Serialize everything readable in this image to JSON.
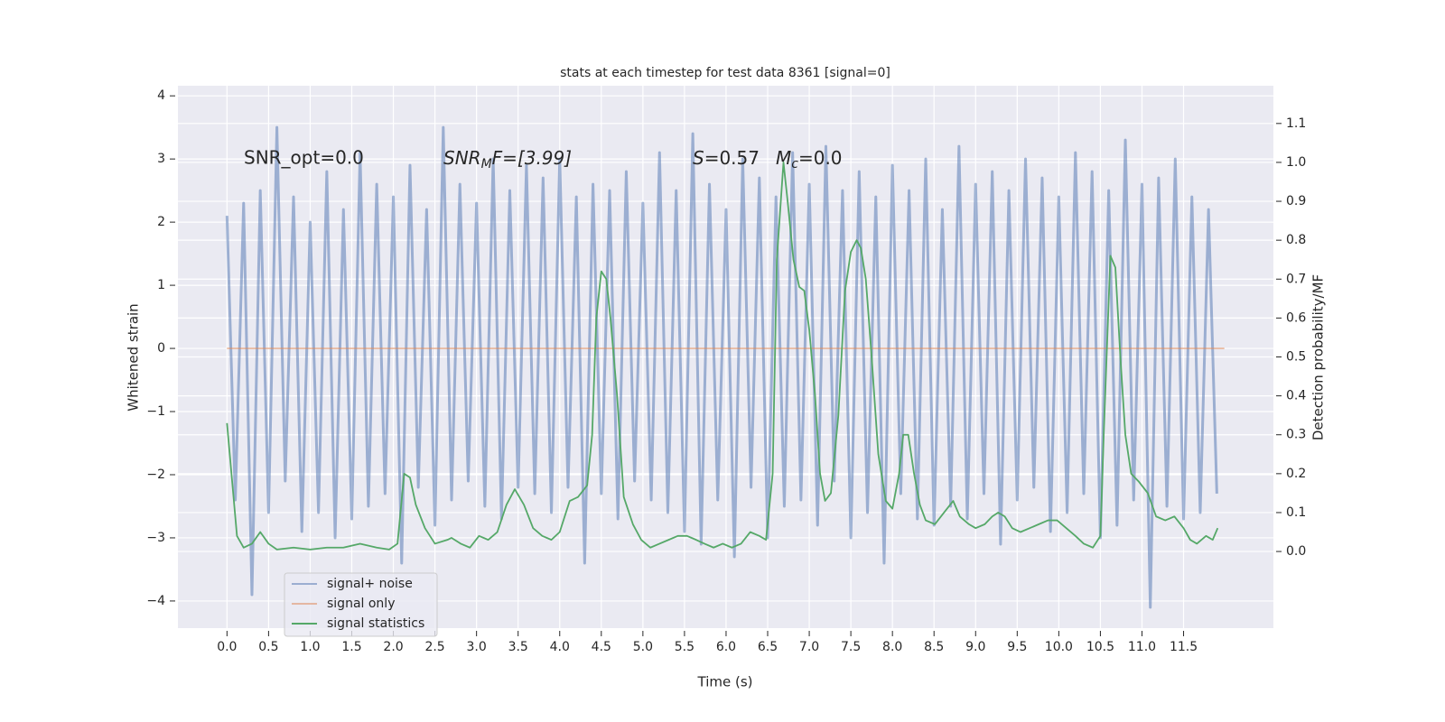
{
  "chart_data": {
    "type": "line",
    "title": "stats at each timestep for test data 8361 [signal=0]",
    "xlabel": "Time (s)",
    "ylabel": "Whitened strain",
    "y2label": "Detection probability/MF",
    "xlim": [
      -0.59,
      12.58
    ],
    "ylim": [
      -4.43,
      4.16
    ],
    "y2lim": [
      -0.197,
      1.197
    ],
    "xticks": [
      {
        "value": 0,
        "label": "0.0"
      },
      {
        "value": 0.5,
        "label": "0.5"
      },
      {
        "value": 1,
        "label": "1.0"
      },
      {
        "value": 1.5,
        "label": "1.5"
      },
      {
        "value": 2,
        "label": "2.0"
      },
      {
        "value": 2.5,
        "label": "2.5"
      },
      {
        "value": 3,
        "label": "3.0"
      },
      {
        "value": 3.5,
        "label": "3.5"
      },
      {
        "value": 4,
        "label": "4.0"
      },
      {
        "value": 4.5,
        "label": "4.5"
      },
      {
        "value": 5,
        "label": "5.0"
      },
      {
        "value": 5.5,
        "label": "5.5"
      },
      {
        "value": 6,
        "label": "6.0"
      },
      {
        "value": 6.5,
        "label": "6.5"
      },
      {
        "value": 7,
        "label": "7.0"
      },
      {
        "value": 7.5,
        "label": "7.5"
      },
      {
        "value": 8,
        "label": "8.0"
      },
      {
        "value": 8.5,
        "label": "8.5"
      },
      {
        "value": 9,
        "label": "9.0"
      },
      {
        "value": 9.5,
        "label": "9.5"
      },
      {
        "value": 10,
        "label": "10.0"
      },
      {
        "value": 10.5,
        "label": "10.5"
      },
      {
        "value": 11,
        "label": "11.0"
      },
      {
        "value": 11.5,
        "label": "11.5"
      }
    ],
    "yticks": [
      {
        "value": -4,
        "label": "−4"
      },
      {
        "value": -3,
        "label": "−3"
      },
      {
        "value": -2,
        "label": "−2"
      },
      {
        "value": -1,
        "label": "−1"
      },
      0,
      1,
      2,
      3,
      4
    ],
    "y2ticks": [
      {
        "value": 0,
        "label": "0.0"
      },
      {
        "value": 0.1,
        "label": "0.1"
      },
      {
        "value": 0.2,
        "label": "0.2"
      },
      {
        "value": 0.3,
        "label": "0.3"
      },
      {
        "value": 0.4,
        "label": "0.4"
      },
      {
        "value": 0.5,
        "label": "0.5"
      },
      {
        "value": 0.6,
        "label": "0.6"
      },
      {
        "value": 0.7,
        "label": "0.7"
      },
      {
        "value": 0.8,
        "label": "0.8"
      },
      {
        "value": 0.9,
        "label": "0.9"
      },
      {
        "value": 1,
        "label": "1.0"
      },
      {
        "value": 1.1,
        "label": "1.1"
      }
    ],
    "grid": true,
    "legend": "lower left",
    "annotations": [
      {
        "text": "SNR_opt=0.0"
      },
      {
        "text": "SNR",
        "sub": "M",
        "tail": "F=[3.99]"
      },
      {
        "text": "S",
        "tail": "=0.57"
      },
      {
        "text": "M",
        "sub": "c",
        "tail": "=0.0"
      }
    ],
    "series": [
      {
        "name": "signal+ noise",
        "color": "#4c72b0",
        "x": [
          0.0,
          0.1,
          0.2,
          0.3,
          0.4,
          0.5,
          0.6,
          0.7,
          0.8,
          0.9,
          1.0,
          1.1,
          1.2,
          1.3,
          1.4,
          1.5,
          1.6,
          1.7,
          1.8,
          1.9,
          2.0,
          2.1,
          2.2,
          2.3,
          2.4,
          2.5,
          2.6,
          2.7,
          2.8,
          2.9,
          3.0,
          3.1,
          3.2,
          3.3,
          3.4,
          3.5,
          3.6,
          3.7,
          3.8,
          3.9,
          4.0,
          4.1,
          4.2,
          4.3,
          4.4,
          4.5,
          4.6,
          4.7,
          4.8,
          4.9,
          5.0,
          5.1,
          5.2,
          5.3,
          5.4,
          5.5,
          5.6,
          5.7,
          5.8,
          5.9,
          6.0,
          6.1,
          6.2,
          6.3,
          6.4,
          6.5,
          6.6,
          6.7,
          6.8,
          6.9,
          7.0,
          7.1,
          7.2,
          7.3,
          7.4,
          7.5,
          7.6,
          7.7,
          7.8,
          7.9,
          8.0,
          8.1,
          8.2,
          8.3,
          8.4,
          8.5,
          8.6,
          8.7,
          8.8,
          8.9,
          9.0,
          9.1,
          9.2,
          9.3,
          9.4,
          9.5,
          9.6,
          9.7,
          9.8,
          9.9,
          10.0,
          10.1,
          10.2,
          10.3,
          10.4,
          10.5,
          10.6,
          10.7,
          10.8,
          10.9,
          11.0,
          11.1,
          11.2,
          11.3,
          11.4,
          11.5,
          11.6,
          11.7,
          11.8,
          11.9
        ],
        "values": [
          2.1,
          -2.4,
          2.3,
          -3.9,
          2.5,
          -2.6,
          3.5,
          -2.1,
          2.4,
          -2.9,
          2.0,
          -2.6,
          2.8,
          -3.0,
          2.2,
          -2.7,
          3.1,
          -2.5,
          2.6,
          -2.3,
          2.4,
          -3.4,
          2.9,
          -2.2,
          2.2,
          -2.8,
          3.5,
          -2.4,
          2.6,
          -2.1,
          2.3,
          -2.5,
          3.0,
          -2.7,
          2.5,
          -2.2,
          2.9,
          -2.3,
          2.7,
          -2.6,
          3.0,
          -2.2,
          2.4,
          -3.4,
          2.6,
          -2.3,
          2.5,
          -2.7,
          2.8,
          -2.1,
          2.3,
          -2.4,
          3.1,
          -2.6,
          2.5,
          -2.9,
          3.4,
          -3.1,
          2.6,
          -2.4,
          2.2,
          -3.3,
          3.0,
          -2.2,
          2.7,
          -3.0,
          2.4,
          -2.5,
          3.1,
          -2.4,
          2.6,
          -2.8,
          3.2,
          -2.1,
          2.5,
          -3.0,
          2.8,
          -2.6,
          2.4,
          -3.4,
          2.9,
          -2.3,
          2.5,
          -2.7,
          3.0,
          -2.8,
          2.2,
          -2.5,
          3.2,
          -2.7,
          2.6,
          -2.3,
          2.8,
          -3.1,
          2.5,
          -2.4,
          3.0,
          -2.2,
          2.7,
          -2.9,
          2.4,
          -2.6,
          3.1,
          -2.3,
          2.8,
          -3.0,
          2.5,
          -2.8,
          3.3,
          -2.4,
          2.6,
          -4.1,
          2.7,
          -2.5,
          3.0,
          -2.7,
          2.4,
          -2.6,
          2.2,
          -2.3
        ]
      },
      {
        "name": "signal only",
        "color": "#dd8452",
        "x": [
          0.0,
          11.99
        ],
        "values": [
          0,
          0
        ]
      },
      {
        "name": "signal statistics",
        "color": "#55a868",
        "axis": "y2",
        "x": [
          0.0,
          0.12,
          0.2,
          0.3,
          0.4,
          0.5,
          0.6,
          0.8,
          1.0,
          1.2,
          1.4,
          1.6,
          1.8,
          1.95,
          2.05,
          2.13,
          2.2,
          2.27,
          2.38,
          2.5,
          2.65,
          2.7,
          2.81,
          2.92,
          3.03,
          3.14,
          3.25,
          3.36,
          3.46,
          3.57,
          3.68,
          3.79,
          3.9,
          4.0,
          4.12,
          4.22,
          4.33,
          4.39,
          4.44,
          4.5,
          4.56,
          4.61,
          4.69,
          4.77,
          4.88,
          4.98,
          5.09,
          5.2,
          5.31,
          5.42,
          5.53,
          5.64,
          5.74,
          5.85,
          5.96,
          6.07,
          6.18,
          6.29,
          6.4,
          6.48,
          6.56,
          6.61,
          6.69,
          6.74,
          6.81,
          6.88,
          6.94,
          7.0,
          7.07,
          7.13,
          7.19,
          7.26,
          7.35,
          7.43,
          7.5,
          7.57,
          7.62,
          7.68,
          7.75,
          7.83,
          7.92,
          8.0,
          8.08,
          8.13,
          8.19,
          8.26,
          8.33,
          8.4,
          8.51,
          8.62,
          8.73,
          8.81,
          8.92,
          9.0,
          9.11,
          9.2,
          9.27,
          9.35,
          9.44,
          9.54,
          9.65,
          9.76,
          9.87,
          9.98,
          10.09,
          10.2,
          10.3,
          10.41,
          10.5,
          10.54,
          10.62,
          10.68,
          10.74,
          10.8,
          10.87,
          10.96,
          11.07,
          11.17,
          11.28,
          11.39,
          11.5,
          11.58,
          11.66,
          11.77,
          11.85,
          11.91
        ],
        "values": [
          0.33,
          0.04,
          0.01,
          0.02,
          0.05,
          0.02,
          0.005,
          0.01,
          0.005,
          0.01,
          0.01,
          0.02,
          0.01,
          0.005,
          0.02,
          0.2,
          0.19,
          0.12,
          0.06,
          0.02,
          0.03,
          0.035,
          0.02,
          0.01,
          0.04,
          0.03,
          0.05,
          0.12,
          0.16,
          0.12,
          0.06,
          0.04,
          0.03,
          0.05,
          0.13,
          0.14,
          0.17,
          0.3,
          0.6,
          0.72,
          0.7,
          0.6,
          0.4,
          0.14,
          0.07,
          0.03,
          0.01,
          0.02,
          0.03,
          0.04,
          0.04,
          0.03,
          0.02,
          0.01,
          0.02,
          0.01,
          0.02,
          0.05,
          0.04,
          0.03,
          0.2,
          0.75,
          1.0,
          0.9,
          0.75,
          0.68,
          0.67,
          0.57,
          0.4,
          0.2,
          0.13,
          0.15,
          0.35,
          0.67,
          0.77,
          0.8,
          0.78,
          0.7,
          0.5,
          0.25,
          0.13,
          0.11,
          0.2,
          0.3,
          0.3,
          0.2,
          0.12,
          0.08,
          0.07,
          0.1,
          0.13,
          0.09,
          0.07,
          0.06,
          0.07,
          0.09,
          0.1,
          0.09,
          0.06,
          0.05,
          0.06,
          0.07,
          0.08,
          0.08,
          0.06,
          0.04,
          0.02,
          0.01,
          0.04,
          0.3,
          0.76,
          0.73,
          0.5,
          0.3,
          0.2,
          0.18,
          0.15,
          0.09,
          0.08,
          0.09,
          0.06,
          0.03,
          0.02,
          0.04,
          0.03,
          0.06
        ]
      }
    ]
  }
}
